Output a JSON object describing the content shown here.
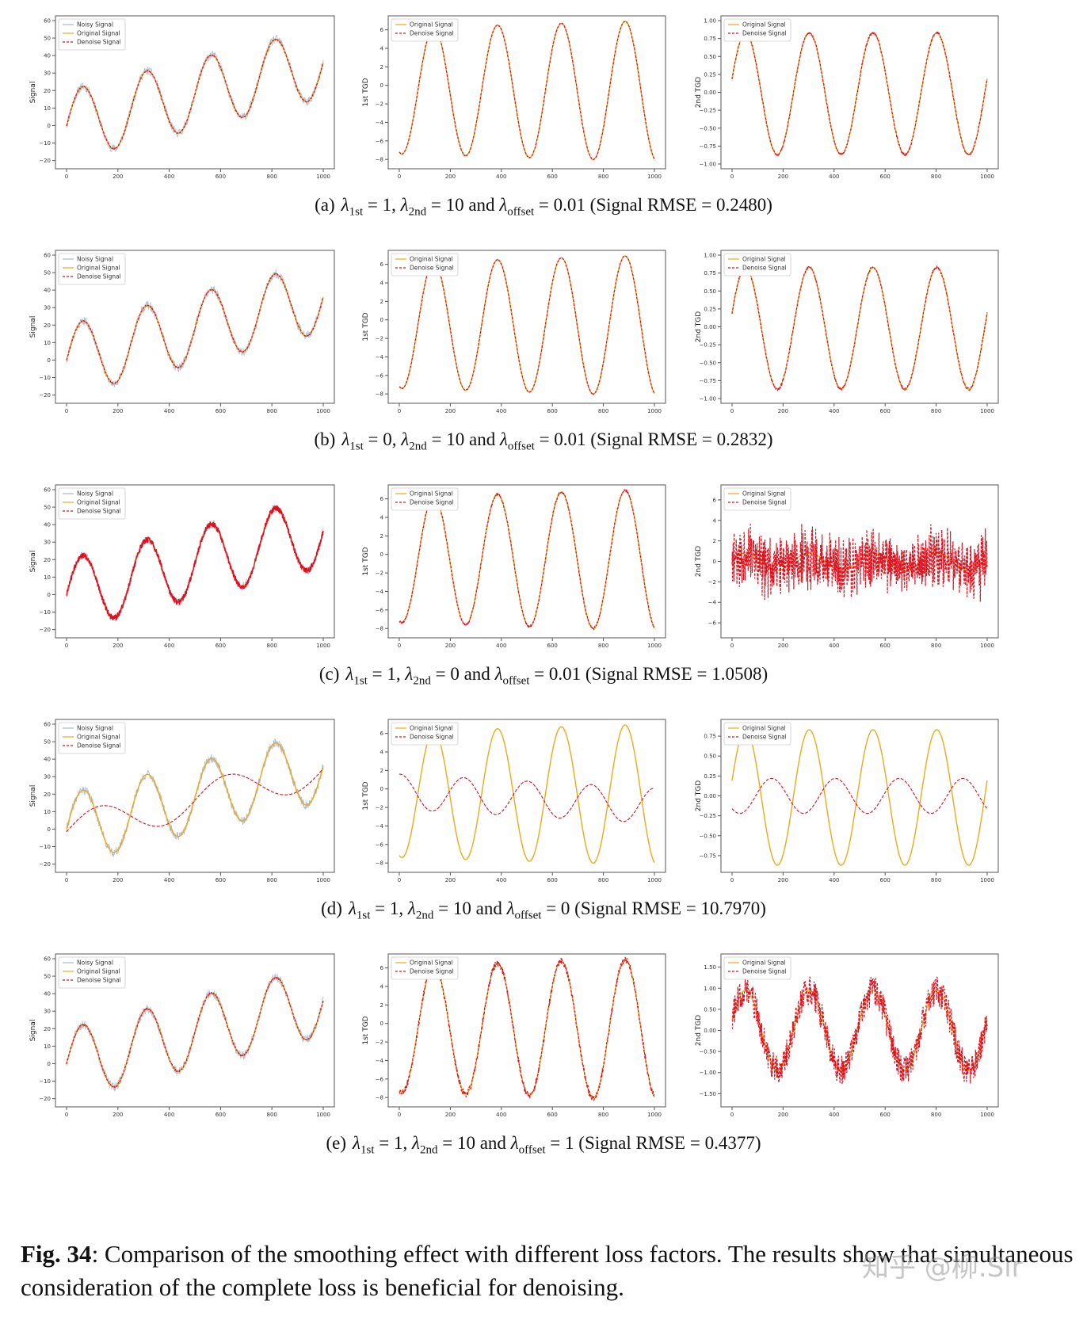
{
  "colors": {
    "noisy": "#a9b8d0",
    "original": "#f0a818",
    "denoise": "#e0101c",
    "axis": "#444444"
  },
  "captions": [
    {
      "label": "(a)",
      "l1": "1",
      "l2": "10",
      "loff": "0.01",
      "rmse": "(Signal RMSE = 0.2480)"
    },
    {
      "label": "(b)",
      "l1": "0",
      "l2": "10",
      "loff": "0.01",
      "rmse": "(Signal RMSE = 0.2832)"
    },
    {
      "label": "(c)",
      "l1": "1",
      "l2": "0",
      "loff": "0.01",
      "rmse": "(Signal RMSE = 1.0508)"
    },
    {
      "label": "(d)",
      "l1": "1",
      "l2": "10",
      "loff": "0",
      "rmse": "(Signal RMSE = 10.7970)"
    },
    {
      "label": "(e)",
      "l1": "1",
      "l2": "10",
      "loff": "1",
      "rmse": "(Signal RMSE = 0.4377)"
    }
  ],
  "caption_text": {
    "lambda": "λ",
    "sub_1st": "1st",
    "sub_2nd": "2nd",
    "sub_offset": "offset",
    "and": "and"
  },
  "figure_caption": {
    "label": "Fig. 34",
    "text": ": Comparison of the smoothing effect with different loss factors. The results show that simultaneous consideration of the complete loss is beneficial for denoising."
  },
  "watermark": "知乎 @柳.Sir",
  "chart_data": [
    {
      "type": "line",
      "panel": "a-signal",
      "xlim": [
        0,
        1000
      ],
      "ylim": [
        -22,
        60
      ],
      "xticks": [
        0,
        200,
        400,
        600,
        800,
        1000
      ],
      "yticks": [
        -20,
        -10,
        0,
        10,
        20,
        30,
        40,
        50,
        60
      ],
      "ylabel": "Signal",
      "legend": [
        "Noisy Signal",
        "Original Signal",
        "Denoise Signal"
      ],
      "legend_position": "top-left",
      "grid": false,
      "series": [
        {
          "name": "Noisy Signal",
          "style": "noisy",
          "base": "signal",
          "noise": 2.5,
          "seed": 11
        },
        {
          "name": "Original Signal",
          "style": "original",
          "base": "signal"
        },
        {
          "name": "Denoise Signal",
          "style": "denoise",
          "base": "signal",
          "noise": 0.3,
          "seed": 12
        }
      ]
    },
    {
      "type": "line",
      "panel": "a-tgd1",
      "xlim": [
        0,
        1000
      ],
      "ylim": [
        -8.5,
        7
      ],
      "xticks": [
        0,
        200,
        400,
        600,
        800,
        1000
      ],
      "yticks": [
        -8,
        -6,
        -4,
        -2,
        0,
        2,
        4,
        6
      ],
      "ylabel": "1st TGD",
      "legend": [
        "Original Signal",
        "Denoise Signal"
      ],
      "legend_position": "top-left",
      "grid": false,
      "series": [
        {
          "name": "Original Signal",
          "style": "original",
          "base": "tgd1"
        },
        {
          "name": "Denoise Signal",
          "style": "denoise",
          "base": "tgd1",
          "noise": 0.05,
          "seed": 13
        }
      ]
    },
    {
      "type": "line",
      "panel": "a-tgd2",
      "xlim": [
        0,
        1000
      ],
      "ylim": [
        -1.0,
        1.0
      ],
      "xticks": [
        0,
        200,
        400,
        600,
        800,
        1000
      ],
      "yticks": [
        -1.0,
        -0.75,
        -0.5,
        -0.25,
        0.0,
        0.25,
        0.5,
        0.75,
        1.0
      ],
      "ylabel": "2nd TGD",
      "legend": [
        "Original Signal",
        "Denoise Signal"
      ],
      "legend_position": "top-left",
      "grid": false,
      "series": [
        {
          "name": "Original Signal",
          "style": "original",
          "base": "tgd2"
        },
        {
          "name": "Denoise Signal",
          "style": "denoise",
          "base": "tgd2",
          "noise": 0.02,
          "seed": 14
        }
      ]
    },
    {
      "type": "line",
      "panel": "b-signal",
      "xlim": [
        0,
        1000
      ],
      "ylim": [
        -22,
        60
      ],
      "xticks": [
        0,
        200,
        400,
        600,
        800,
        1000
      ],
      "yticks": [
        -20,
        -10,
        0,
        10,
        20,
        30,
        40,
        50,
        60
      ],
      "ylabel": "Signal",
      "legend": [
        "Noisy Signal",
        "Original Signal",
        "Denoise Signal"
      ],
      "legend_position": "top-left",
      "grid": false,
      "series": [
        {
          "name": "Noisy Signal",
          "style": "noisy",
          "base": "signal",
          "noise": 2.5,
          "seed": 21
        },
        {
          "name": "Original Signal",
          "style": "original",
          "base": "signal"
        },
        {
          "name": "Denoise Signal",
          "style": "denoise",
          "base": "signal",
          "noise": 0.35,
          "seed": 22
        }
      ]
    },
    {
      "type": "line",
      "panel": "b-tgd1",
      "xlim": [
        0,
        1000
      ],
      "ylim": [
        -8.5,
        7
      ],
      "xticks": [
        0,
        200,
        400,
        600,
        800,
        1000
      ],
      "yticks": [
        -8,
        -6,
        -4,
        -2,
        0,
        2,
        4,
        6
      ],
      "ylabel": "1st TGD",
      "legend": [
        "Original Signal",
        "Denoise Signal"
      ],
      "legend_position": "top-left",
      "grid": false,
      "series": [
        {
          "name": "Original Signal",
          "style": "original",
          "base": "tgd1"
        },
        {
          "name": "Denoise Signal",
          "style": "denoise",
          "base": "tgd1",
          "noise": 0.05,
          "seed": 23
        }
      ]
    },
    {
      "type": "line",
      "panel": "b-tgd2",
      "xlim": [
        0,
        1000
      ],
      "ylim": [
        -1.0,
        1.0
      ],
      "xticks": [
        0,
        200,
        400,
        600,
        800,
        1000
      ],
      "yticks": [
        -1.0,
        -0.75,
        -0.5,
        -0.25,
        0.0,
        0.25,
        0.5,
        0.75,
        1.0
      ],
      "ylabel": "2nd TGD",
      "legend": [
        "Original Signal",
        "Denoise Signal"
      ],
      "legend_position": "top-left",
      "grid": false,
      "series": [
        {
          "name": "Original Signal",
          "style": "original",
          "base": "tgd2"
        },
        {
          "name": "Denoise Signal",
          "style": "denoise",
          "base": "tgd2",
          "noise": 0.02,
          "seed": 24
        }
      ]
    },
    {
      "type": "line",
      "panel": "c-signal",
      "xlim": [
        0,
        1000
      ],
      "ylim": [
        -22,
        60
      ],
      "xticks": [
        0,
        200,
        400,
        600,
        800,
        1000
      ],
      "yticks": [
        -20,
        -10,
        0,
        10,
        20,
        30,
        40,
        50,
        60
      ],
      "ylabel": "Signal",
      "legend": [
        "Noisy Signal",
        "Original Signal",
        "Denoise Signal"
      ],
      "legend_position": "top-left",
      "grid": false,
      "series": [
        {
          "name": "Noisy Signal",
          "style": "noisy",
          "base": "signal",
          "noise": 2.5,
          "seed": 31
        },
        {
          "name": "Original Signal",
          "style": "original",
          "base": "signal"
        },
        {
          "name": "Denoise Signal",
          "style": "denoise-heavy",
          "base": "signal",
          "noise": 1.6,
          "seed": 32
        }
      ]
    },
    {
      "type": "line",
      "panel": "c-tgd1",
      "xlim": [
        0,
        1000
      ],
      "ylim": [
        -8.5,
        7
      ],
      "xticks": [
        0,
        200,
        400,
        600,
        800,
        1000
      ],
      "yticks": [
        -8,
        -6,
        -4,
        -2,
        0,
        2,
        4,
        6
      ],
      "ylabel": "1st TGD",
      "legend": [
        "Original Signal",
        "Denoise Signal"
      ],
      "legend_position": "top-left",
      "grid": false,
      "series": [
        {
          "name": "Original Signal",
          "style": "original",
          "base": "tgd1"
        },
        {
          "name": "Denoise Signal",
          "style": "denoise",
          "base": "tgd1",
          "noise": 0.15,
          "seed": 33
        }
      ]
    },
    {
      "type": "line",
      "panel": "c-tgd2",
      "xlim": [
        0,
        1000
      ],
      "ylim": [
        -7,
        7
      ],
      "xticks": [
        0,
        200,
        400,
        600,
        800,
        1000
      ],
      "yticks": [
        -6,
        -4,
        -2,
        0,
        2,
        4,
        6
      ],
      "ylabel": "2nd TGD",
      "legend": [
        "Original Signal",
        "Denoise Signal"
      ],
      "legend_position": "top-left",
      "grid": false,
      "series": [
        {
          "name": "Original Signal",
          "style": "original",
          "base": "tgd2"
        },
        {
          "name": "Denoise Signal",
          "style": "denoise",
          "base": "noise2",
          "noise": 2.0,
          "seed": 34
        }
      ]
    },
    {
      "type": "line",
      "panel": "d-signal",
      "xlim": [
        0,
        1000
      ],
      "ylim": [
        -22,
        60
      ],
      "xticks": [
        0,
        200,
        400,
        600,
        800,
        1000
      ],
      "yticks": [
        -20,
        -10,
        0,
        10,
        20,
        30,
        40,
        50,
        60
      ],
      "ylabel": "Signal",
      "legend": [
        "Noisy Signal",
        "Original Signal",
        "Denoise Signal"
      ],
      "legend_position": "top-left",
      "grid": false,
      "series": [
        {
          "name": "Noisy Signal",
          "style": "noisy",
          "base": "signal",
          "noise": 2.5,
          "seed": 41
        },
        {
          "name": "Original Signal",
          "style": "original",
          "base": "signal"
        },
        {
          "name": "Denoise Signal",
          "style": "denoise-dash",
          "base": "d_signal"
        }
      ]
    },
    {
      "type": "line",
      "panel": "d-tgd1",
      "xlim": [
        0,
        1000
      ],
      "ylim": [
        -8.5,
        7
      ],
      "xticks": [
        0,
        200,
        400,
        600,
        800,
        1000
      ],
      "yticks": [
        -8,
        -6,
        -4,
        -2,
        0,
        2,
        4,
        6
      ],
      "ylabel": "1st TGD",
      "legend": [
        "Original Signal",
        "Denoise Signal"
      ],
      "legend_position": "top-left",
      "grid": false,
      "series": [
        {
          "name": "Original Signal",
          "style": "original",
          "base": "tgd1"
        },
        {
          "name": "Denoise Signal",
          "style": "denoise-dash",
          "base": "d_tgd1"
        }
      ]
    },
    {
      "type": "line",
      "panel": "d-tgd2",
      "xlim": [
        0,
        1000
      ],
      "ylim": [
        -0.9,
        0.9
      ],
      "xticks": [
        0,
        200,
        400,
        600,
        800,
        1000
      ],
      "yticks": [
        -0.75,
        -0.5,
        -0.25,
        0.0,
        0.25,
        0.5,
        0.75
      ],
      "ylabel": "2nd TGD",
      "legend": [
        "Original Signal",
        "Denoise Signal"
      ],
      "legend_position": "top-left",
      "grid": false,
      "series": [
        {
          "name": "Original Signal",
          "style": "original",
          "base": "tgd2"
        },
        {
          "name": "Denoise Signal",
          "style": "denoise-dash",
          "base": "d_tgd2"
        }
      ]
    },
    {
      "type": "line",
      "panel": "e-signal",
      "xlim": [
        0,
        1000
      ],
      "ylim": [
        -22,
        60
      ],
      "xticks": [
        0,
        200,
        400,
        600,
        800,
        1000
      ],
      "yticks": [
        -20,
        -10,
        0,
        10,
        20,
        30,
        40,
        50,
        60
      ],
      "ylabel": "Signal",
      "legend": [
        "Noisy Signal",
        "Original Signal",
        "Denoise Signal"
      ],
      "legend_position": "top-left",
      "grid": false,
      "series": [
        {
          "name": "Noisy Signal",
          "style": "noisy",
          "base": "signal",
          "noise": 2.5,
          "seed": 51
        },
        {
          "name": "Original Signal",
          "style": "original",
          "base": "signal"
        },
        {
          "name": "Denoise Signal",
          "style": "denoise",
          "base": "signal",
          "noise": 0.5,
          "seed": 52
        }
      ]
    },
    {
      "type": "line",
      "panel": "e-tgd1",
      "xlim": [
        0,
        1000
      ],
      "ylim": [
        -8.5,
        7
      ],
      "xticks": [
        0,
        200,
        400,
        600,
        800,
        1000
      ],
      "yticks": [
        -8,
        -6,
        -4,
        -2,
        0,
        2,
        4,
        6
      ],
      "ylabel": "1st TGD",
      "legend": [
        "Original Signal",
        "Denoise Signal"
      ],
      "legend_position": "top-left",
      "grid": false,
      "series": [
        {
          "name": "Original Signal",
          "style": "original",
          "base": "tgd1"
        },
        {
          "name": "Denoise Signal",
          "style": "denoise",
          "base": "tgd1",
          "noise": 0.35,
          "seed": 53
        }
      ]
    },
    {
      "type": "line",
      "panel": "e-tgd2",
      "xlim": [
        0,
        1000
      ],
      "ylim": [
        -1.7,
        1.7
      ],
      "xticks": [
        0,
        200,
        400,
        600,
        800,
        1000
      ],
      "yticks": [
        -1.5,
        -1.0,
        -0.5,
        0.0,
        0.5,
        1.0,
        1.5
      ],
      "ylabel": "2nd TGD",
      "legend": [
        "Original Signal",
        "Denoise Signal"
      ],
      "legend_position": "top-left",
      "grid": false,
      "series": [
        {
          "name": "Original Signal",
          "style": "original",
          "base": "e_tgd2"
        },
        {
          "name": "Denoise Signal",
          "style": "denoise",
          "base": "e_tgd2",
          "noise": 0.35,
          "seed": 54
        }
      ]
    }
  ]
}
